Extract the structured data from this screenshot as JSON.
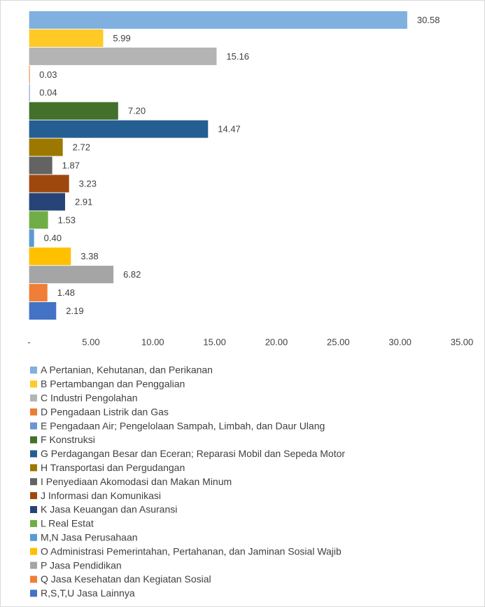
{
  "chart_data": {
    "type": "bar",
    "orientation": "horizontal",
    "categories": [
      "A Pertanian, Kehutanan, dan Perikanan",
      "B Pertambangan dan Penggalian",
      "C Industri Pengolahan",
      "D Pengadaan Listrik dan Gas",
      "E Pengadaan Air; Pengelolaan Sampah, Limbah, dan Daur Ulang",
      "F Konstruksi",
      "G Perdagangan Besar dan Eceran; Reparasi Mobil dan Sepeda Motor",
      "H Transportasi dan Pergudangan",
      "I Penyediaan Akomodasi dan Makan Minum",
      "J Informasi dan Komunikasi",
      "K Jasa Keuangan dan Asuransi",
      "L Real Estat",
      "M,N Jasa Perusahaan",
      "O Administrasi Pemerintahan, Pertahanan, dan Jaminan Sosial Wajib",
      "P Jasa Pendidikan",
      "Q Jasa Kesehatan dan Kegiatan Sosial",
      "R,S,T,U Jasa Lainnya"
    ],
    "values": [
      30.58,
      5.99,
      15.16,
      0.03,
      0.04,
      7.2,
      14.47,
      2.72,
      1.87,
      3.23,
      2.91,
      1.53,
      0.4,
      3.38,
      6.82,
      1.48,
      2.19
    ],
    "value_labels": [
      "30.58",
      "5.99",
      "15.16",
      "0.03",
      "0.04",
      "7.20",
      "14.47",
      "2.72",
      "1.87",
      "3.23",
      "2.91",
      "1.53",
      "0.40",
      "3.38",
      "6.82",
      "1.48",
      "2.19"
    ],
    "colors": [
      "#7fb0e0",
      "#ffc926",
      "#b4b4b4",
      "#ed7d31",
      "#6f94d0",
      "#43702a",
      "#255e91",
      "#9c7800",
      "#636363",
      "#9e480e",
      "#264478",
      "#70ad47",
      "#5b9bd5",
      "#ffc000",
      "#a5a5a5",
      "#ef7f38",
      "#4472c4"
    ],
    "xlim": [
      0,
      35
    ],
    "xticks": [
      {
        "value": 0,
        "label": "-"
      },
      {
        "value": 5,
        "label": "5.00"
      },
      {
        "value": 10,
        "label": "10.00"
      },
      {
        "value": 15,
        "label": "15.00"
      },
      {
        "value": 20,
        "label": "20.00"
      },
      {
        "value": 25,
        "label": "25.00"
      },
      {
        "value": 30,
        "label": "30.00"
      },
      {
        "value": 35,
        "label": "35.00"
      }
    ],
    "legend": "bottom"
  }
}
